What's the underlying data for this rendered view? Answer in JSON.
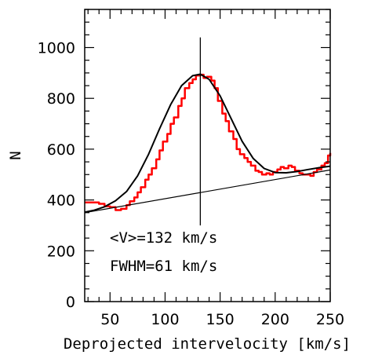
{
  "chart_data": {
    "type": "line",
    "title": "",
    "xlabel": "Deprojected intervelocity [km/s]",
    "ylabel": "N",
    "xlim": [
      27,
      250
    ],
    "ylim": [
      0,
      1150
    ],
    "grid": false,
    "x_ticks": [
      50,
      100,
      150,
      200,
      250
    ],
    "y_ticks": [
      0,
      200,
      400,
      600,
      800,
      1000
    ],
    "x_tick_labels": [
      "50",
      "100",
      "150",
      "200",
      "250"
    ],
    "y_tick_labels": [
      "0",
      "200",
      "400",
      "600",
      "800",
      "1000"
    ],
    "annotations": [
      "<V>=132 km/s",
      "FWHM=61 km/s"
    ],
    "series": [
      {
        "style": "histogram",
        "color": "#ff0000",
        "x": [
          27,
          35,
          40,
          45,
          50,
          55,
          60,
          65,
          68,
          72,
          75,
          78,
          82,
          85,
          88,
          92,
          95,
          98,
          102,
          105,
          108,
          112,
          115,
          118,
          122,
          125,
          128,
          132,
          135,
          138,
          142,
          145,
          148,
          152,
          155,
          158,
          162,
          165,
          168,
          172,
          175,
          178,
          182,
          185,
          188,
          192,
          195,
          198,
          202,
          205,
          208,
          212,
          215,
          218,
          222,
          225,
          228,
          232,
          235,
          238,
          242,
          245,
          248,
          250
        ],
        "y": [
          390,
          390,
          385,
          375,
          372,
          360,
          365,
          380,
          395,
          410,
          430,
          450,
          480,
          500,
          525,
          560,
          595,
          630,
          660,
          700,
          725,
          770,
          800,
          840,
          860,
          875,
          890,
          893,
          880,
          885,
          870,
          840,
          790,
          740,
          710,
          670,
          640,
          600,
          580,
          565,
          550,
          535,
          515,
          510,
          500,
          505,
          500,
          510,
          520,
          530,
          525,
          535,
          530,
          515,
          505,
          500,
          500,
          495,
          510,
          520,
          535,
          545,
          575,
          585
        ]
      },
      {
        "style": "fit",
        "color": "#000000",
        "x": [
          27,
          35,
          45,
          55,
          65,
          75,
          85,
          95,
          105,
          115,
          125,
          132,
          140,
          150,
          160,
          170,
          180,
          190,
          200,
          210,
          220,
          230,
          240,
          250
        ],
        "y": [
          352,
          359,
          373,
          397,
          433,
          495,
          580,
          680,
          775,
          850,
          889,
          895,
          875,
          810,
          720,
          631,
          564,
          524,
          508,
          507,
          512,
          520,
          527,
          533
        ]
      },
      {
        "style": "baseline",
        "color": "#000000",
        "x": [
          27,
          250
        ],
        "y": [
          350,
          518
        ]
      }
    ],
    "mean_marker": {
      "x": 132,
      "y_range": [
        300,
        1040
      ]
    }
  }
}
